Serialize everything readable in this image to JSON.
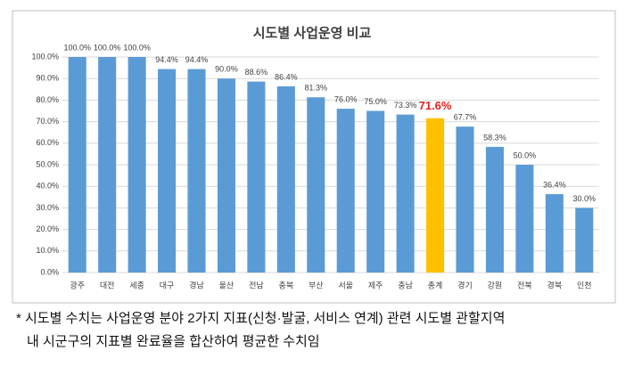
{
  "chart_data": {
    "type": "bar",
    "title": "시도별 사업운영 비교",
    "categories": [
      "광주",
      "대전",
      "세종",
      "대구",
      "경남",
      "울산",
      "전남",
      "충북",
      "부산",
      "서울",
      "제주",
      "충남",
      "총계",
      "경기",
      "강원",
      "전북",
      "경북",
      "인천"
    ],
    "values": [
      100.0,
      100.0,
      100.0,
      94.4,
      94.4,
      90.0,
      88.6,
      86.4,
      81.3,
      76.0,
      75.0,
      73.3,
      71.6,
      67.7,
      58.3,
      50.0,
      36.4,
      30.0
    ],
    "value_labels": [
      "100.0%",
      "100.0%",
      "100.0%",
      "94.4%",
      "94.4%",
      "90.0%",
      "88.6%",
      "86.4%",
      "81.3%",
      "76.0%",
      "75.0%",
      "73.3%",
      "71.6%",
      "67.7%",
      "58.3%",
      "50.0%",
      "36.4%",
      "30.0%"
    ],
    "colors": [
      "#5b9bd5",
      "#5b9bd5",
      "#5b9bd5",
      "#5b9bd5",
      "#5b9bd5",
      "#5b9bd5",
      "#5b9bd5",
      "#5b9bd5",
      "#5b9bd5",
      "#5b9bd5",
      "#5b9bd5",
      "#5b9bd5",
      "#ffc000",
      "#5b9bd5",
      "#5b9bd5",
      "#5b9bd5",
      "#5b9bd5",
      "#5b9bd5"
    ],
    "value_label_colors": [
      "#404040",
      "#404040",
      "#404040",
      "#404040",
      "#404040",
      "#404040",
      "#404040",
      "#404040",
      "#404040",
      "#404040",
      "#404040",
      "#404040",
      "#e02020",
      "#404040",
      "#404040",
      "#404040",
      "#404040",
      "#404040"
    ],
    "ylim": [
      0,
      100
    ],
    "yticks": [
      {
        "value": 0,
        "label": "0.0%"
      },
      {
        "value": 10,
        "label": "10.0%"
      },
      {
        "value": 20,
        "label": "20.0%"
      },
      {
        "value": 30,
        "label": "30.0%"
      },
      {
        "value": 40,
        "label": "40.0%"
      },
      {
        "value": 50,
        "label": "50.0%"
      },
      {
        "value": 60,
        "label": "60.0%"
      },
      {
        "value": 70,
        "label": "70.0%"
      },
      {
        "value": 80,
        "label": "80.0%"
      },
      {
        "value": 90,
        "label": "90.0%"
      },
      {
        "value": 100,
        "label": "100.0%"
      }
    ],
    "grid": true
  },
  "footnote": [
    "* 시도별 수치는 사업운영 분야 2가지 지표(신청·발굴, 서비스 연계) 관련 시도별 관할지역",
    "내 시군구의 지표별 완료율을 합산하여 평균한 수치임"
  ]
}
